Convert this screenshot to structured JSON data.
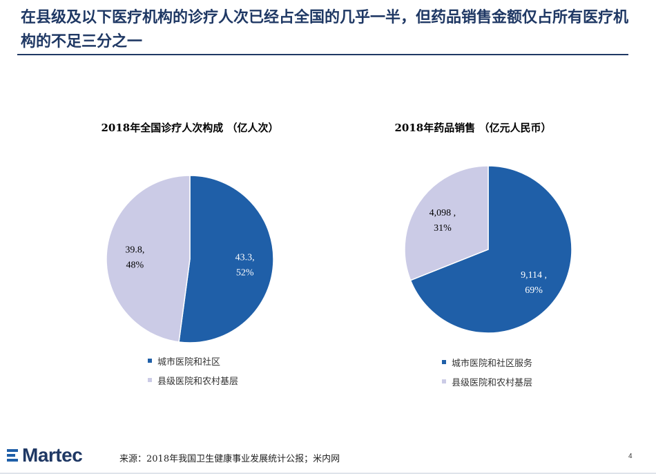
{
  "header": {
    "title": "在县级及以下医疗机构的诊疗人次已经占全国的几乎一半，但药品销售金额仅占所有医疗机构的不足三分之一"
  },
  "colors": {
    "blue": "#1f5fa8",
    "lavender": "#cbcbe6",
    "title": "#1f3864"
  },
  "chart_data": [
    {
      "type": "pie",
      "title": "2018年全国诊疗人次构成 （亿人次）",
      "labels": [
        "城市医院和社区",
        "县级医院和农村基层"
      ],
      "values": [
        43.3,
        39.8
      ],
      "percent": [
        "52%",
        "48%"
      ],
      "value_labels": [
        "43.3,",
        "39.8,"
      ],
      "colors": [
        "#1f5fa8",
        "#cbcbe6"
      ],
      "legend": "bottom"
    },
    {
      "type": "pie",
      "title": "2018年药品销售 （亿元人民币）",
      "labels": [
        "城市医院和社区服务",
        "县级医院和农村基层"
      ],
      "values": [
        9114,
        4098
      ],
      "percent": [
        "69%",
        "31%"
      ],
      "value_labels": [
        "9,114 ,",
        "4,098 ,"
      ],
      "colors": [
        "#1f5fa8",
        "#cbcbe6"
      ],
      "legend": "bottom"
    }
  ],
  "footer": {
    "logo": "Martec",
    "source": "来源：2018年我国卫生健康事业发展统计公报；米内网",
    "page": "4"
  }
}
